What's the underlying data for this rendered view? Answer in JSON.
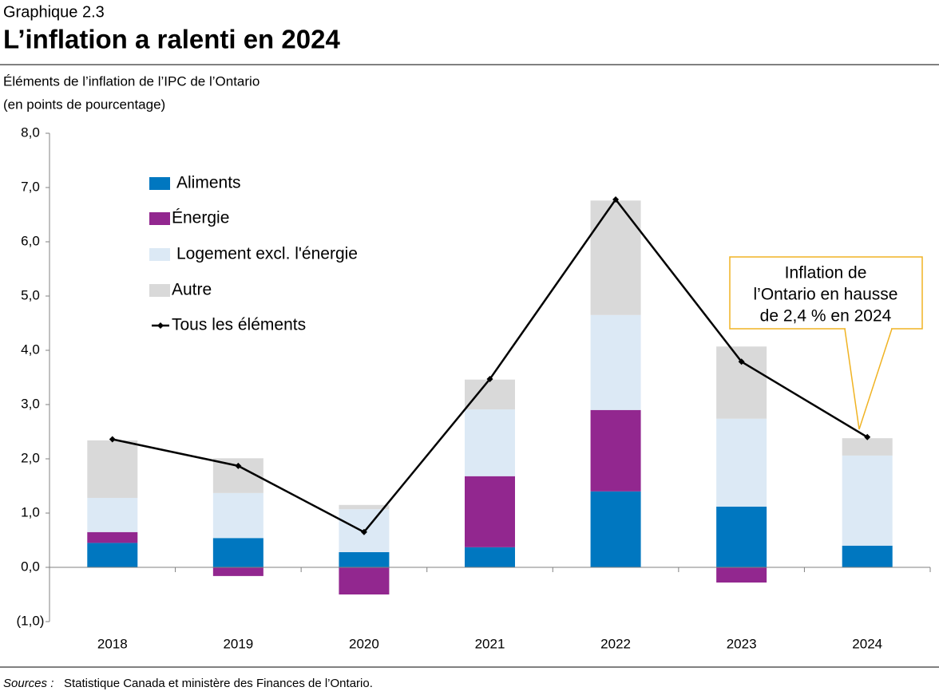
{
  "header": {
    "label": "Graphique 2.3",
    "title": "L’inflation a ralenti en 2024"
  },
  "chart_data": {
    "type": "stacked-bar-line",
    "subtitle": [
      "Éléments de l’inflation de l’IPC de l’Ontario",
      "(en points de pourcentage)"
    ],
    "categories": [
      "2018",
      "2019",
      "2020",
      "2021",
      "2022",
      "2023",
      "2024"
    ],
    "series": [
      {
        "name": "Aliments",
        "color": "#0077c0",
        "values": [
          0.45,
          0.54,
          0.28,
          0.37,
          1.4,
          1.12,
          0.4
        ]
      },
      {
        "name": "Énergie",
        "color": "#92278f",
        "values": [
          0.2,
          -0.16,
          -0.5,
          1.31,
          1.5,
          -0.28,
          0
        ]
      },
      {
        "name": "Logement excl. l'énergie",
        "color": "#dce9f5",
        "values": [
          0.63,
          0.83,
          0.79,
          1.23,
          1.75,
          1.62,
          1.66
        ]
      },
      {
        "name": "Autre",
        "color": "#d9d9d9",
        "values": [
          1.06,
          0.64,
          0.08,
          0.55,
          2.11,
          1.33,
          0.32
        ]
      }
    ],
    "line": {
      "name": "Tous les éléments",
      "color": "#000000",
      "values": [
        2.36,
        1.87,
        0.65,
        3.47,
        6.78,
        3.79,
        2.4
      ]
    },
    "ylim": [
      -1,
      8
    ],
    "yticks": [
      {
        "value": -1,
        "label": "(1,0)"
      },
      {
        "value": 0,
        "label": "0,0"
      },
      {
        "value": 1,
        "label": "1,0"
      },
      {
        "value": 2,
        "label": "2,0"
      },
      {
        "value": 3,
        "label": "3,0"
      },
      {
        "value": 4,
        "label": "4,0"
      },
      {
        "value": 5,
        "label": "5,0"
      },
      {
        "value": 6,
        "label": "6,0"
      },
      {
        "value": 7,
        "label": "7,0"
      },
      {
        "value": 8,
        "label": "8,0"
      }
    ],
    "annotation": [
      "Inflation de",
      "l’Ontario en hausse",
      "de 2,4 % en 2024"
    ]
  },
  "footer": {
    "label": "Sources :",
    "text": "Statistique Canada et ministère des Finances de l’Ontario."
  }
}
